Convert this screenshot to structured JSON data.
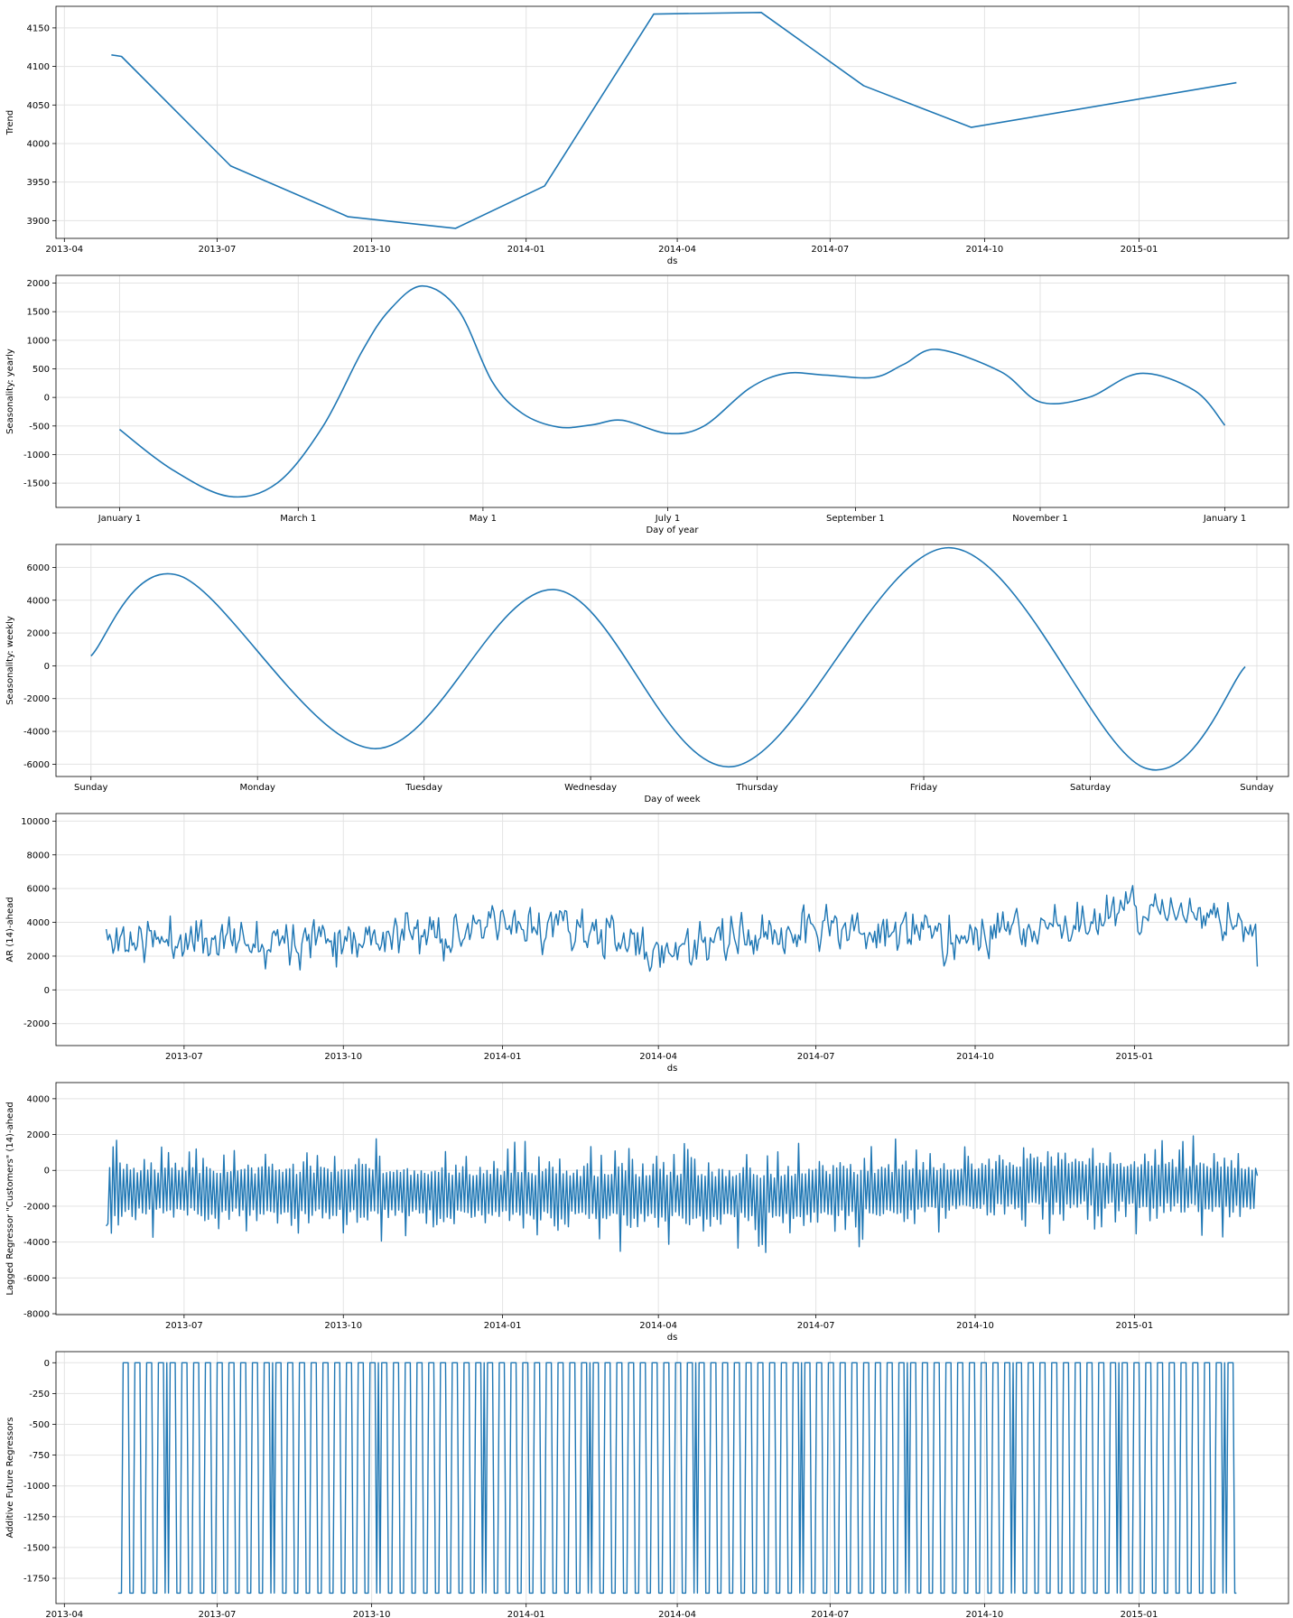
{
  "line_color": "#1f77b4",
  "chart_data": [
    {
      "type": "line",
      "xlabel": "ds",
      "ylabel": "Trend",
      "x_type": "date",
      "xlim": [
        "2013-03-27",
        "2015-03-31"
      ],
      "ylim": [
        3877,
        4178
      ],
      "xticks": [
        "2013-04",
        "2013-07",
        "2013-10",
        "2014-01",
        "2014-04",
        "2014-07",
        "2014-10",
        "2015-01"
      ],
      "yticks": [
        3900,
        3950,
        4000,
        4050,
        4100,
        4150
      ],
      "grid": true,
      "series": [
        {
          "x": [
            "2013-04-29",
            "2013-05-05",
            "2013-07-09",
            "2013-09-17",
            "2013-11-20",
            "2014-01-12",
            "2014-03-18",
            "2014-05-21",
            "2014-07-21",
            "2014-09-23",
            "2015-02-28"
          ],
          "y": [
            4115,
            4113,
            3971,
            3905,
            3890,
            3945,
            4168,
            4170,
            4075,
            4021,
            4079
          ]
        }
      ],
      "noise": null
    },
    {
      "type": "line",
      "xlabel": "Day of year",
      "ylabel": "Seasonality: yearly",
      "x_type": "doy",
      "xlim": [
        -21,
        386
      ],
      "ylim": [
        -1925,
        2135
      ],
      "xticks": [
        0,
        59,
        120,
        181,
        243,
        304,
        365
      ],
      "xtick_labels": [
        "January 1",
        "March 1",
        "May 1",
        "July 1",
        "September 1",
        "November 1",
        "January 1"
      ],
      "yticks": [
        -1500,
        -1000,
        -500,
        0,
        500,
        1000,
        1500,
        2000
      ],
      "grid": true,
      "smooth": true,
      "series": [
        {
          "x": [
            0,
            17,
            36,
            52,
            67,
            80,
            89,
            100,
            112,
            123,
            133,
            145,
            156,
            166,
            181,
            193,
            208,
            220,
            233,
            249,
            259,
            270,
            291,
            304,
            320,
            337,
            355,
            365
          ],
          "y": [
            -560,
            -1250,
            -1730,
            -1500,
            -520,
            800,
            1520,
            1950,
            1520,
            280,
            -280,
            -520,
            -480,
            -400,
            -630,
            -500,
            160,
            420,
            390,
            350,
            580,
            840,
            450,
            -80,
            0,
            420,
            120,
            -490
          ]
        }
      ],
      "noise": null
    },
    {
      "type": "line",
      "xlabel": "Day of week",
      "ylabel": "Seasonality: weekly",
      "x_type": "dow",
      "xlim": [
        -0.21,
        7.19
      ],
      "ylim": [
        -6750,
        7400
      ],
      "xticks": [
        0,
        1,
        2,
        3,
        4,
        5,
        6,
        7
      ],
      "xtick_labels": [
        "Sunday",
        "Monday",
        "Tuesday",
        "Wednesday",
        "Thursday",
        "Friday",
        "Saturday",
        "Sunday"
      ],
      "yticks": [
        -6000,
        -4000,
        -2000,
        0,
        2000,
        4000,
        6000
      ],
      "grid": true,
      "smooth": true,
      "series": [
        {
          "x": [
            0,
            0.53,
            1.7,
            2.78,
            3.85,
            5.15,
            6.32,
            6.93
          ],
          "y": [
            600,
            5500,
            -5050,
            4650,
            -6150,
            7200,
            -6200,
            -60
          ]
        }
      ],
      "noise": null
    },
    {
      "type": "line",
      "xlabel": "ds",
      "ylabel": "AR (14)-ahead",
      "x_type": "date",
      "xlim": [
        "2013-04-18",
        "2015-03-31"
      ],
      "ylim": [
        -3300,
        10450
      ],
      "xticks": [
        "2013-07",
        "2013-10",
        "2014-01",
        "2014-04",
        "2014-07",
        "2014-10",
        "2015-01"
      ],
      "yticks": [
        -2000,
        0,
        2000,
        4000,
        6000,
        8000,
        10000
      ],
      "grid": true,
      "series": [],
      "noise": {
        "kind": "ar",
        "start": "2013-05-17",
        "end": "2015-03-13",
        "seed": 11,
        "first": 3600,
        "last": 1380,
        "baseline": [
          [
            "2013-05-17",
            2900
          ],
          [
            "2013-09-01",
            3200
          ],
          [
            "2013-12-01",
            3300
          ],
          [
            "2014-02-01",
            3900
          ],
          [
            "2014-04-01",
            2200
          ],
          [
            "2014-07-01",
            3700
          ],
          [
            "2014-10-01",
            3100
          ],
          [
            "2015-01-15",
            4800
          ],
          [
            "2015-03-13",
            3600
          ]
        ],
        "amplitude": 2100,
        "clip": [
          -2700,
          9800
        ]
      }
    },
    {
      "type": "line",
      "xlabel": "ds",
      "ylabel": "Lagged Regressor \"Customers\" (14)-ahead",
      "x_type": "date",
      "xlim": [
        "2013-04-18",
        "2015-03-31"
      ],
      "ylim": [
        -8050,
        4900
      ],
      "xticks": [
        "2013-07",
        "2013-10",
        "2014-01",
        "2014-04",
        "2014-07",
        "2014-10",
        "2015-01"
      ],
      "yticks": [
        -8000,
        -6000,
        -4000,
        -2000,
        0,
        2000,
        4000
      ],
      "grid": true,
      "series": [],
      "noise": {
        "kind": "zigzag",
        "start": "2013-05-17",
        "end": "2015-03-13",
        "seed": 29,
        "first": -3100,
        "last": -300,
        "baseline": [
          [
            "2013-05-17",
            -1100
          ],
          [
            "2014-06-01",
            -1400
          ],
          [
            "2014-12-01",
            -700
          ],
          [
            "2015-03-13",
            -1000
          ]
        ],
        "amplitude": 2700,
        "clip": [
          -7400,
          4600
        ]
      }
    },
    {
      "type": "line",
      "xlabel": "ds",
      "ylabel": "Additive Future Regressors",
      "x_type": "date",
      "xlim": [
        "2013-03-27",
        "2015-03-31"
      ],
      "ylim": [
        -1955,
        90
      ],
      "xticks": [
        "2013-04",
        "2013-07",
        "2013-10",
        "2014-01",
        "2014-04",
        "2014-07",
        "2014-10",
        "2015-01"
      ],
      "yticks": [
        0,
        -250,
        -500,
        -750,
        -1000,
        -1250,
        -1500,
        -1750
      ],
      "grid": true,
      "series": [],
      "noise": {
        "kind": "step",
        "start": "2013-05-03",
        "end": "2015-02-28",
        "low": -1870,
        "high": 0
      }
    }
  ]
}
